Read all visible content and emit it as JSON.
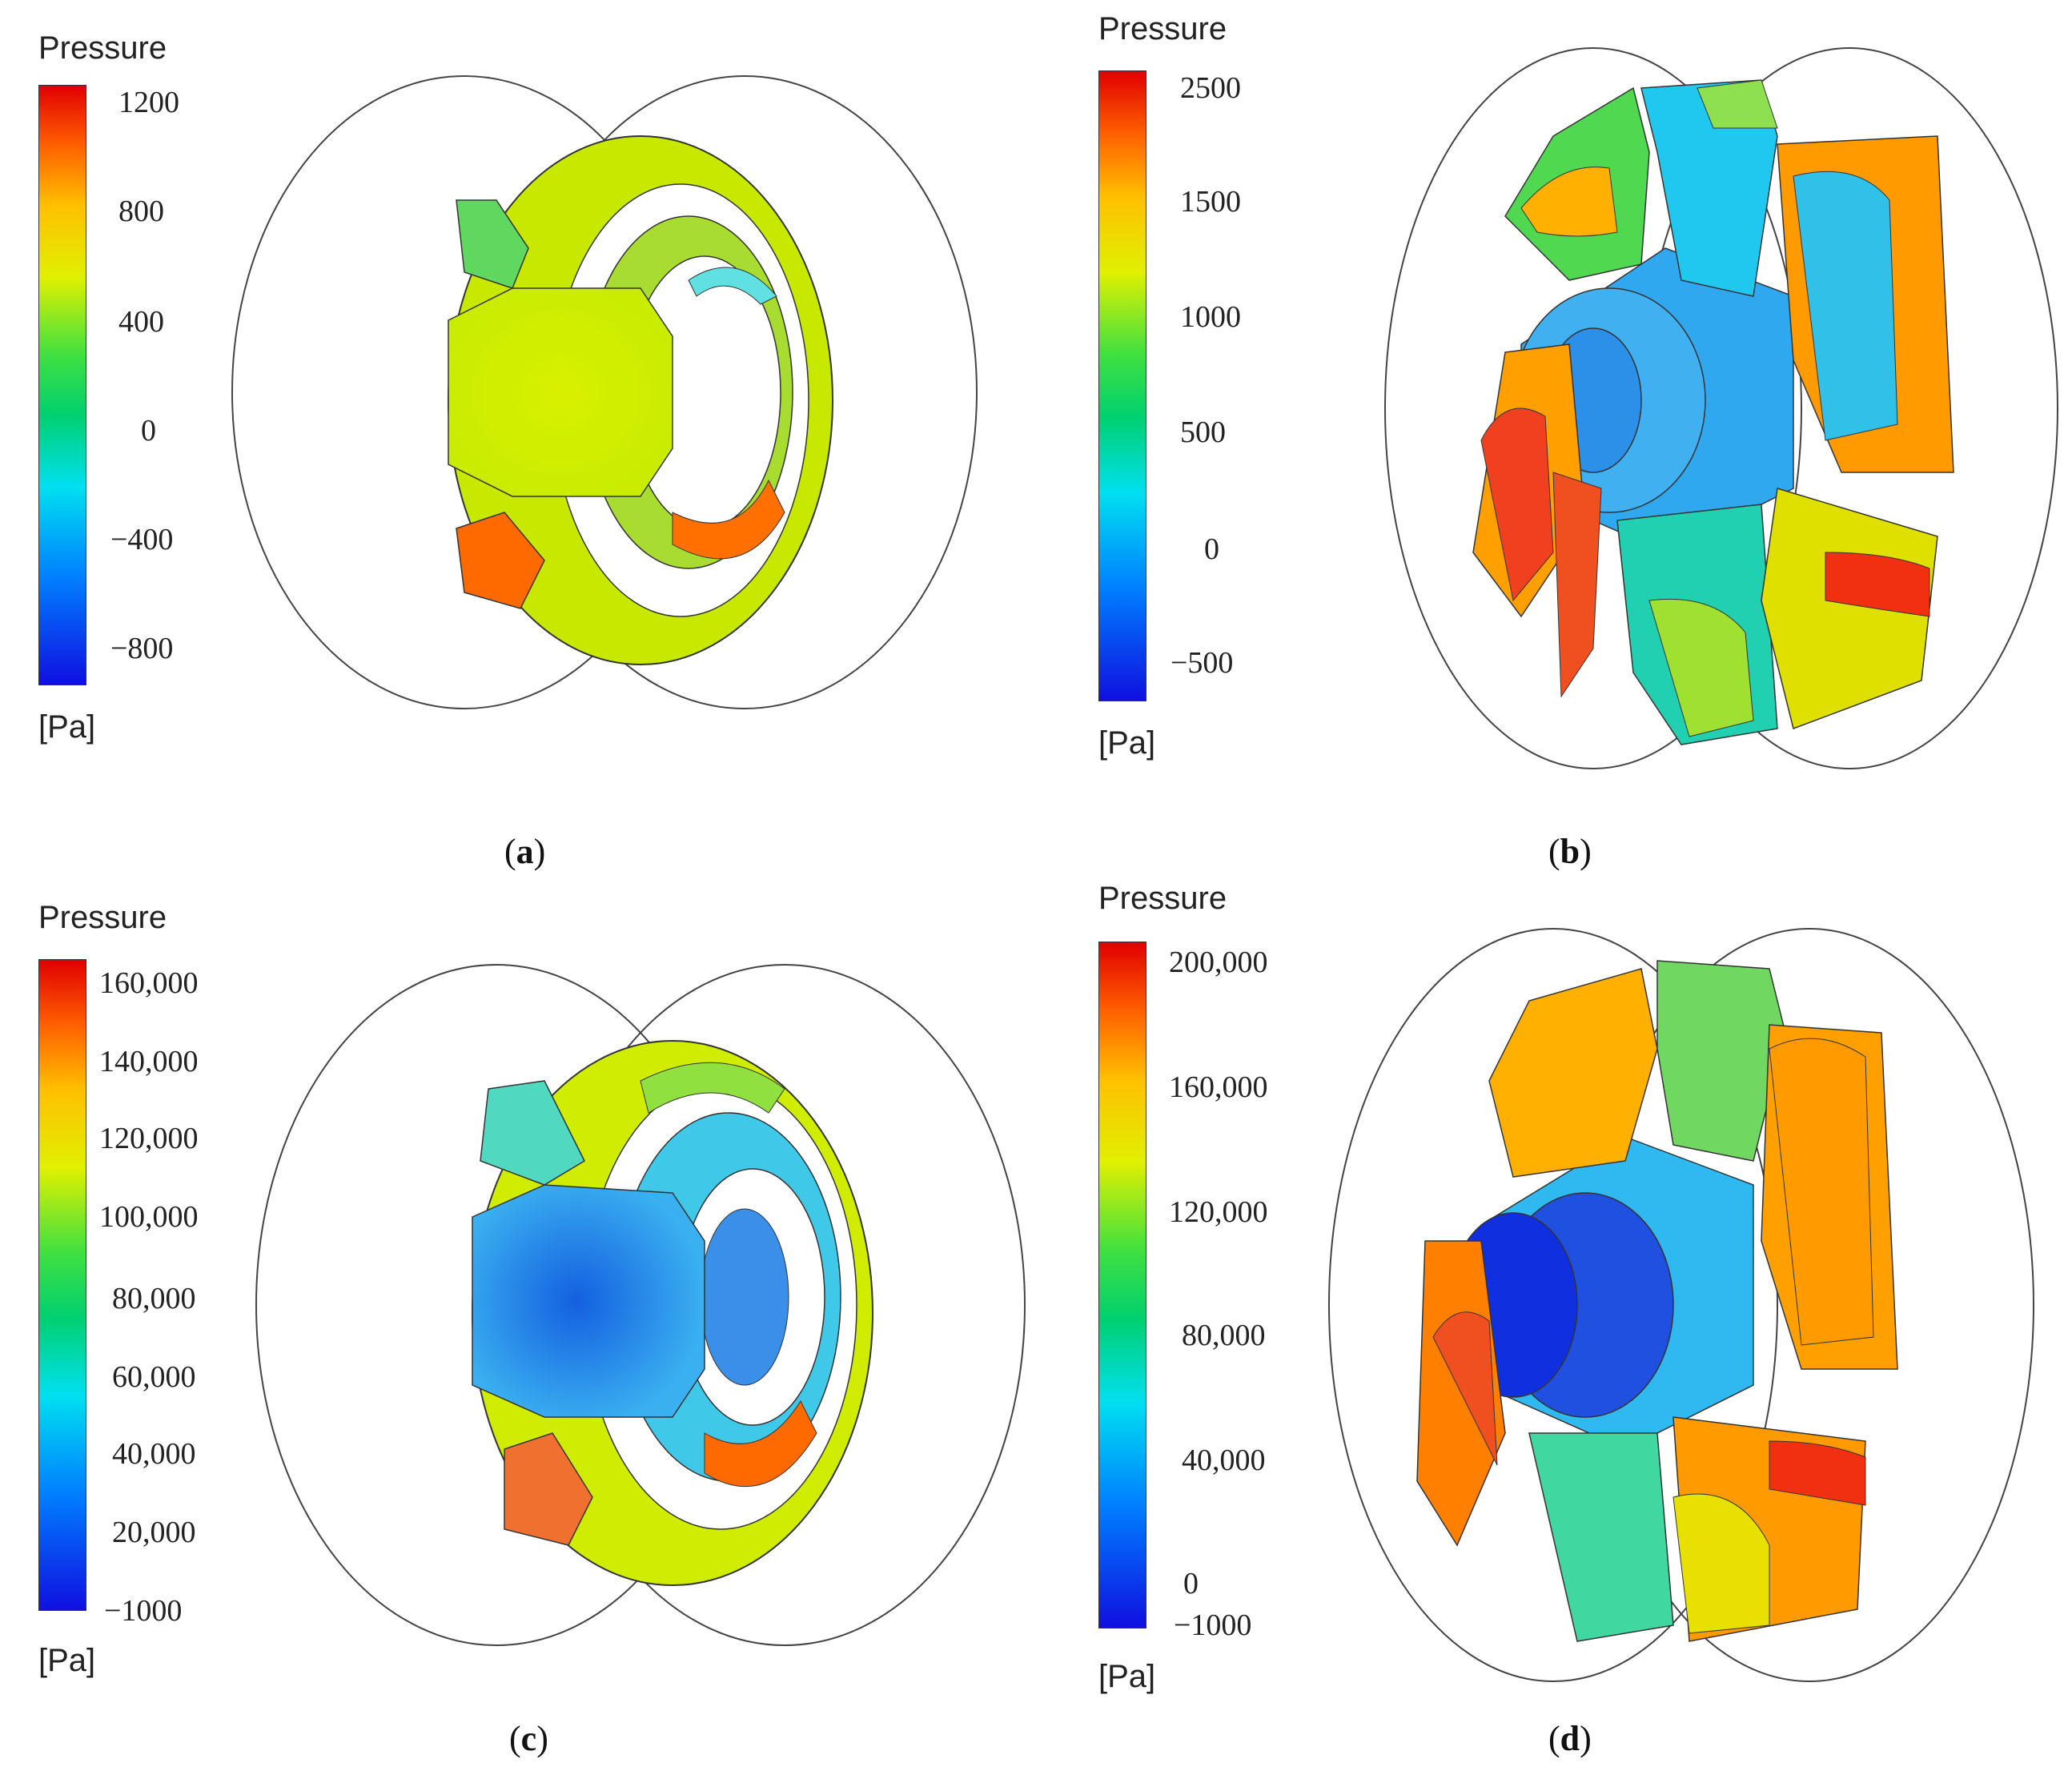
{
  "colors": {
    "red": "#e00000",
    "orange": "#ff8a00",
    "yellow": "#e0f000",
    "green": "#40e040",
    "cyan": "#00e0f0",
    "blue": "#1010e0"
  },
  "panels": [
    {
      "id": "a",
      "legend_title": "Pressure",
      "unit": "[Pa]",
      "ticks": [
        "1200",
        "800",
        "400",
        "0",
        "−400",
        "−800"
      ],
      "caption": "a"
    },
    {
      "id": "b",
      "legend_title": "Pressure",
      "unit": "[Pa]",
      "ticks": [
        "2500",
        "1500",
        "1000",
        "500",
        "0",
        "−500"
      ],
      "caption": "b"
    },
    {
      "id": "c",
      "legend_title": "Pressure",
      "unit": "[Pa]",
      "ticks": [
        "160,000",
        "140,000",
        "120,000",
        "100,000",
        "80,000",
        "60,000",
        "40,000",
        "20,000",
        "−1000"
      ],
      "caption": "c"
    },
    {
      "id": "d",
      "legend_title": "Pressure",
      "unit": "[Pa]",
      "ticks": [
        "200,000",
        "160,000",
        "120,000",
        "80,000",
        "40,000",
        "0",
        "−1000"
      ],
      "caption": "d"
    }
  ]
}
